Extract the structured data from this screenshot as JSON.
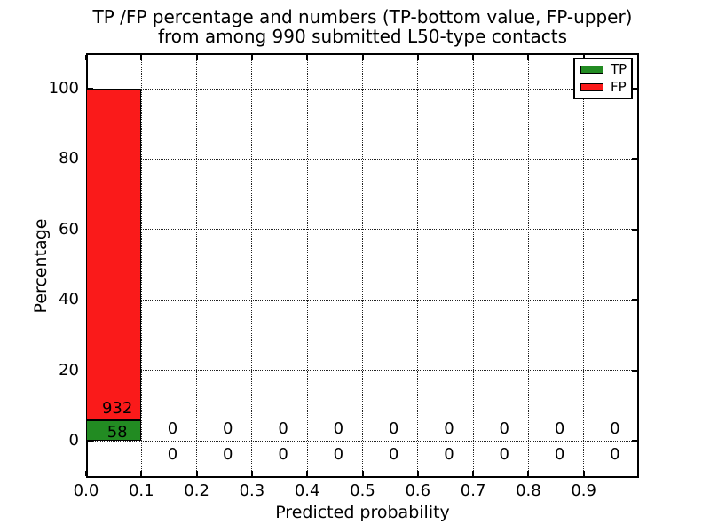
{
  "chart_data": {
    "type": "bar",
    "stacked": true,
    "title_line1": "TP /FP percentage and numbers (TP-bottom value, FP-upper)",
    "title_line2": "from among 990 submitted L50-type contacts",
    "xlabel": "Predicted probability",
    "ylabel": "Percentage",
    "total_submitted": 990,
    "xlim": [
      0.0,
      1.0
    ],
    "ylim": [
      -10.6,
      110.1
    ],
    "xticks": [
      0.0,
      0.1,
      0.2,
      0.3,
      0.4,
      0.5,
      0.6,
      0.7,
      0.8,
      0.9
    ],
    "yticks": [
      0,
      20,
      40,
      60,
      80,
      100
    ],
    "bin_width": 0.1,
    "bin_starts": [
      0.0,
      0.1,
      0.2,
      0.3,
      0.4,
      0.5,
      0.6,
      0.7,
      0.8,
      0.9
    ],
    "grid_style": "dotted",
    "legend_position": "upper right",
    "series": [
      {
        "name": "TP",
        "color": "#228b22",
        "counts": [
          58,
          0,
          0,
          0,
          0,
          0,
          0,
          0,
          0,
          0
        ],
        "percent": [
          5.86,
          0,
          0,
          0,
          0,
          0,
          0,
          0,
          0,
          0
        ]
      },
      {
        "name": "FP",
        "color": "#fa1a1a",
        "counts": [
          932,
          0,
          0,
          0,
          0,
          0,
          0,
          0,
          0,
          0
        ],
        "percent": [
          94.14,
          0,
          0,
          0,
          0,
          0,
          0,
          0,
          0,
          0
        ]
      }
    ]
  }
}
